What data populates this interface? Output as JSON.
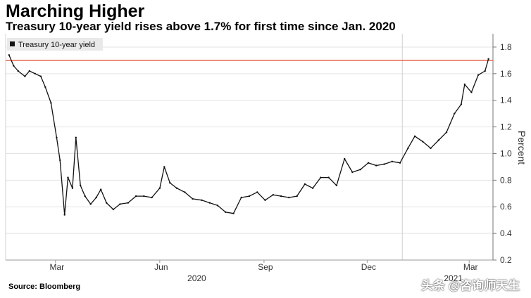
{
  "title": "Marching Higher",
  "subtitle": "Treasury 10-year yield rises above 1.7% for first time since Jan. 2020",
  "source": "Source: Bloomberg",
  "watermark": "头条 @咨询师天生",
  "chart_data": {
    "type": "line",
    "title": "Marching Higher",
    "subtitle": "Treasury 10-year yield rises above 1.7% for first time since Jan. 2020",
    "ylabel": "Percent",
    "xlabel": "",
    "ylim": [
      0.2,
      1.9
    ],
    "yticks": [
      0.2,
      0.4,
      0.6,
      0.8,
      1.0,
      1.2,
      1.4,
      1.6,
      1.8
    ],
    "ytick_labels": [
      "0.2",
      "0.4",
      "0.6",
      "0.8",
      "1.0",
      "1.2",
      "1.4",
      "1.6",
      "1.8"
    ],
    "xticks": [
      "Mar",
      "Jun",
      "Sep",
      "Dec",
      "Mar"
    ],
    "year_labels": [
      "2020",
      "2021"
    ],
    "legend": [
      "Treasury 10-year yield"
    ],
    "reference_line": {
      "value": 1.7,
      "color": "#e8644a"
    },
    "series": [
      {
        "name": "Treasury 10-year yield",
        "color": "#111111",
        "x": [
          "2020-01-20",
          "2020-01-24",
          "2020-01-28",
          "2020-02-03",
          "2020-02-07",
          "2020-02-12",
          "2020-02-17",
          "2020-02-21",
          "2020-02-26",
          "2020-03-02",
          "2020-03-05",
          "2020-03-09",
          "2020-03-12",
          "2020-03-16",
          "2020-03-19",
          "2020-03-23",
          "2020-03-27",
          "2020-04-01",
          "2020-04-06",
          "2020-04-10",
          "2020-04-15",
          "2020-04-21",
          "2020-04-27",
          "2020-05-04",
          "2020-05-11",
          "2020-05-18",
          "2020-05-25",
          "2020-06-01",
          "2020-06-05",
          "2020-06-10",
          "2020-06-16",
          "2020-06-23",
          "2020-06-30",
          "2020-07-08",
          "2020-07-15",
          "2020-07-22",
          "2020-07-29",
          "2020-08-05",
          "2020-08-12",
          "2020-08-19",
          "2020-08-26",
          "2020-09-02",
          "2020-09-09",
          "2020-09-16",
          "2020-09-23",
          "2020-09-30",
          "2020-10-07",
          "2020-10-14",
          "2020-10-21",
          "2020-10-28",
          "2020-11-04",
          "2020-11-11",
          "2020-11-18",
          "2020-11-25",
          "2020-12-02",
          "2020-12-09",
          "2020-12-16",
          "2020-12-23",
          "2020-12-30",
          "2021-01-06",
          "2021-01-12",
          "2021-01-19",
          "2021-01-26",
          "2021-02-02",
          "2021-02-09",
          "2021-02-16",
          "2021-02-22",
          "2021-02-25",
          "2021-03-03",
          "2021-03-09",
          "2021-03-15",
          "2021-03-18"
        ],
        "values": [
          1.74,
          1.66,
          1.62,
          1.58,
          1.62,
          1.6,
          1.58,
          1.5,
          1.38,
          1.12,
          0.95,
          0.54,
          0.82,
          0.74,
          1.12,
          0.76,
          0.68,
          0.62,
          0.67,
          0.73,
          0.63,
          0.58,
          0.62,
          0.63,
          0.68,
          0.68,
          0.67,
          0.74,
          0.9,
          0.78,
          0.74,
          0.71,
          0.66,
          0.65,
          0.63,
          0.61,
          0.56,
          0.55,
          0.67,
          0.68,
          0.71,
          0.65,
          0.69,
          0.68,
          0.67,
          0.68,
          0.77,
          0.74,
          0.82,
          0.82,
          0.76,
          0.96,
          0.86,
          0.88,
          0.93,
          0.91,
          0.92,
          0.94,
          0.93,
          1.04,
          1.13,
          1.09,
          1.04,
          1.1,
          1.16,
          1.3,
          1.37,
          1.52,
          1.46,
          1.59,
          1.62,
          1.71
        ]
      }
    ]
  }
}
